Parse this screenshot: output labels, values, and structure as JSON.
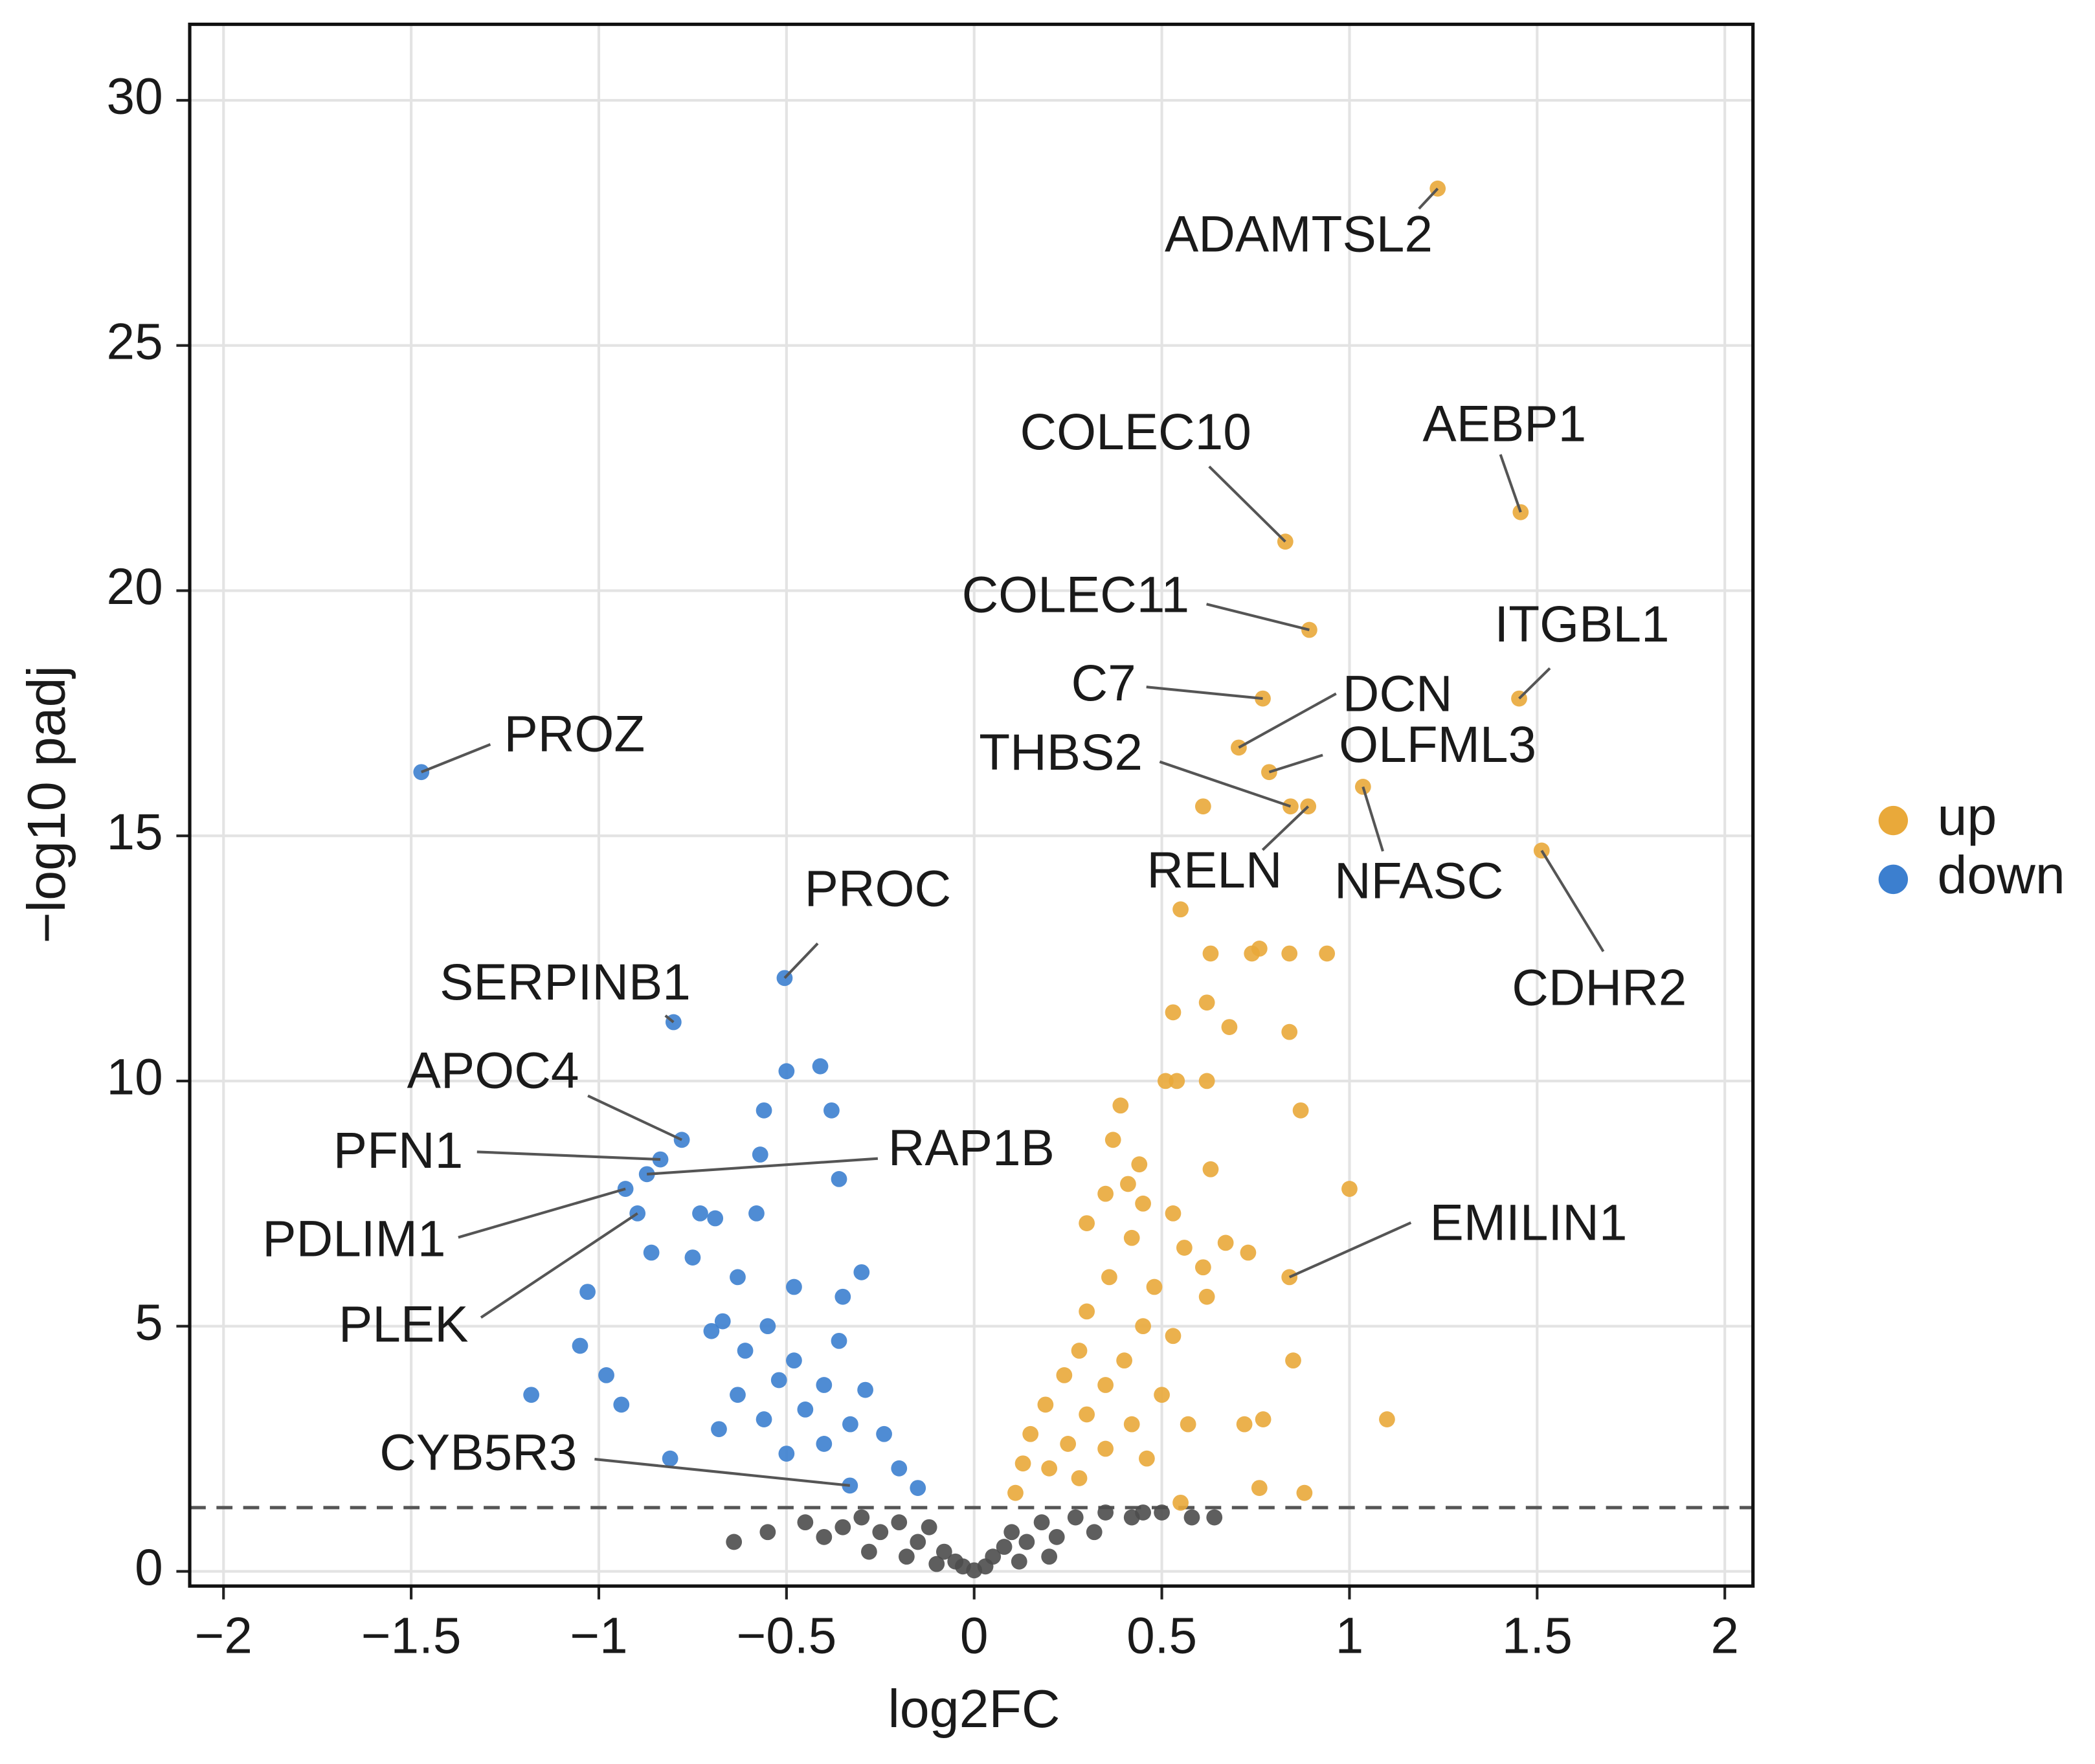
{
  "chart_data": {
    "type": "scatter",
    "x_label": "log2FC",
    "y_label": "−log10 padj",
    "xlim": [
      -2.09,
      2.075
    ],
    "ylim": [
      -0.3,
      31.55
    ],
    "xticks": [
      {
        "value": -2,
        "label": "−2"
      },
      {
        "value": -1.5,
        "label": "−1.5"
      },
      {
        "value": -1,
        "label": "−1"
      },
      {
        "value": -0.5,
        "label": "−0.5"
      },
      0,
      0.5,
      1,
      1.5,
      2
    ],
    "yticks": [
      0,
      5,
      10,
      15,
      20,
      25,
      30
    ],
    "grid": true,
    "hline": 1.3,
    "legend": "right",
    "series": [
      {
        "color": "#4d4d4d",
        "x": [
          -0.64,
          -0.55,
          -0.45,
          -0.4,
          -0.35,
          -0.3,
          -0.25,
          -0.2,
          -0.15,
          -0.12,
          -0.08,
          -0.05,
          -0.03,
          0,
          0.03,
          0.05,
          0.08,
          0.1,
          0.14,
          0.18,
          0.22,
          0.27,
          0.32,
          0.35,
          0.42,
          0.45,
          0.5,
          0.58,
          0.64,
          -0.28,
          0.2,
          -0.18,
          -0.1,
          0.12
        ],
        "values": [
          0.6,
          0.8,
          1.0,
          0.7,
          0.9,
          1.1,
          0.8,
          1.0,
          0.6,
          0.9,
          0.4,
          0.2,
          0.1,
          0.02,
          0.1,
          0.3,
          0.5,
          0.8,
          0.6,
          1.0,
          0.7,
          1.1,
          0.8,
          1.2,
          1.1,
          1.2,
          1.2,
          1.1,
          1.1,
          0.4,
          0.3,
          0.3,
          0.15,
          0.2
        ]
      },
      {
        "name": "up",
        "color": "#e9a93a",
        "x": [
          1.235,
          1.456,
          0.829,
          0.893,
          1.452,
          0.769,
          0.705,
          0.786,
          0.843,
          0.89,
          1.036,
          1.512,
          0.84,
          0.61,
          0.55,
          0.63,
          0.74,
          0.76,
          0.84,
          0.94,
          0.62,
          0.53,
          0.68,
          0.84,
          0.51,
          0.54,
          0.62,
          0.87,
          0.39,
          0.37,
          0.44,
          0.41,
          0.63,
          0.35,
          0.45,
          0.53,
          0.3,
          0.42,
          0.56,
          0.67,
          0.73,
          0.61,
          0.36,
          0.48,
          0.62,
          0.3,
          0.45,
          0.53,
          0.85,
          0.28,
          0.4,
          0.24,
          0.35,
          0.5,
          0.19,
          0.3,
          0.42,
          0.57,
          0.72,
          0.77,
          1.1,
          0.15,
          0.25,
          0.35,
          0.46,
          0.13,
          0.2,
          0.28,
          0.76,
          0.88,
          0.11,
          0.55,
          1.0
        ],
        "values": [
          28.2,
          21.6,
          21.0,
          19.2,
          17.8,
          17.8,
          16.8,
          16.3,
          15.6,
          15.6,
          16.0,
          14.7,
          6.0,
          15.6,
          13.5,
          12.6,
          12.6,
          12.7,
          12.6,
          12.6,
          11.6,
          11.4,
          11.1,
          11.0,
          10.0,
          10.0,
          10.0,
          9.4,
          9.5,
          8.8,
          8.3,
          7.9,
          8.2,
          7.7,
          7.5,
          7.3,
          7.1,
          6.8,
          6.6,
          6.7,
          6.5,
          6.2,
          6.0,
          5.8,
          5.6,
          5.3,
          5.0,
          4.8,
          4.3,
          4.5,
          4.3,
          4.0,
          3.8,
          3.6,
          3.4,
          3.2,
          3.0,
          3.0,
          3.0,
          3.1,
          3.1,
          2.8,
          2.6,
          2.5,
          2.3,
          2.2,
          2.1,
          1.9,
          1.7,
          1.6,
          1.6,
          1.4,
          7.8
        ],
        "labels": [
          "ADAMTSL2",
          "AEBP1",
          "COLEC10",
          "COLEC11",
          "ITGBL1",
          "C7",
          "DCN",
          "OLFML3",
          "THBS2",
          "RELN",
          "NFASC",
          "CDHR2",
          "EMILIN1",
          null,
          null,
          null,
          null,
          null,
          null,
          null,
          null,
          null,
          null,
          null,
          null,
          null,
          null,
          null,
          null,
          null,
          null,
          null,
          null,
          null,
          null,
          null,
          null,
          null,
          null,
          null,
          null,
          null,
          null,
          null,
          null,
          null,
          null,
          null,
          null,
          null,
          null,
          null,
          null,
          null,
          null,
          null,
          null,
          null,
          null,
          null,
          null,
          null,
          null,
          null,
          null,
          null,
          null,
          null,
          null,
          null,
          null,
          null,
          null
        ]
      },
      {
        "name": "down",
        "color": "#3c7fcf",
        "x": [
          -1.473,
          -0.505,
          -0.801,
          -0.779,
          -0.836,
          -0.872,
          -0.929,
          -0.897,
          -0.331,
          -0.41,
          -0.5,
          -0.56,
          -0.38,
          -0.57,
          -0.36,
          -0.73,
          -0.69,
          -0.58,
          -0.86,
          -1.03,
          -1.05,
          -0.98,
          -1.18,
          -0.94,
          -0.81,
          -0.3,
          -0.35,
          -0.48,
          -0.63,
          -0.75,
          -0.67,
          -0.55,
          -0.7,
          -0.61,
          -0.48,
          -0.36,
          -0.52,
          -0.4,
          -0.63,
          -0.29,
          -0.45,
          -0.56,
          -0.33,
          -0.68,
          -0.24,
          -0.4,
          -0.5,
          -0.2,
          -0.15
        ],
        "values": [
          16.3,
          12.1,
          11.2,
          8.8,
          8.4,
          8.1,
          7.8,
          7.3,
          1.75,
          10.3,
          10.2,
          9.4,
          9.4,
          8.5,
          8.0,
          7.3,
          7.2,
          7.3,
          6.5,
          5.7,
          4.6,
          4.0,
          3.6,
          3.4,
          2.3,
          6.1,
          5.6,
          5.8,
          6.0,
          6.4,
          5.1,
          5.0,
          4.9,
          4.5,
          4.3,
          4.7,
          3.9,
          3.8,
          3.6,
          3.7,
          3.3,
          3.1,
          3.0,
          2.9,
          2.8,
          2.6,
          2.4,
          2.1,
          1.7
        ],
        "labels": [
          "PROZ",
          "PROC",
          "SERPINB1",
          "APOC4",
          "PFN1",
          "RAP1B",
          "PDLIM1",
          "PLEK",
          "CYB5R3",
          null,
          null,
          null,
          null,
          null,
          null,
          null,
          null,
          null,
          null,
          null,
          null,
          null,
          null,
          null,
          null,
          null,
          null,
          null,
          null,
          null,
          null,
          null,
          null,
          null,
          null,
          null,
          null,
          null,
          null,
          null,
          null,
          null,
          null,
          null,
          null,
          null,
          null,
          null,
          null
        ]
      }
    ]
  }
}
